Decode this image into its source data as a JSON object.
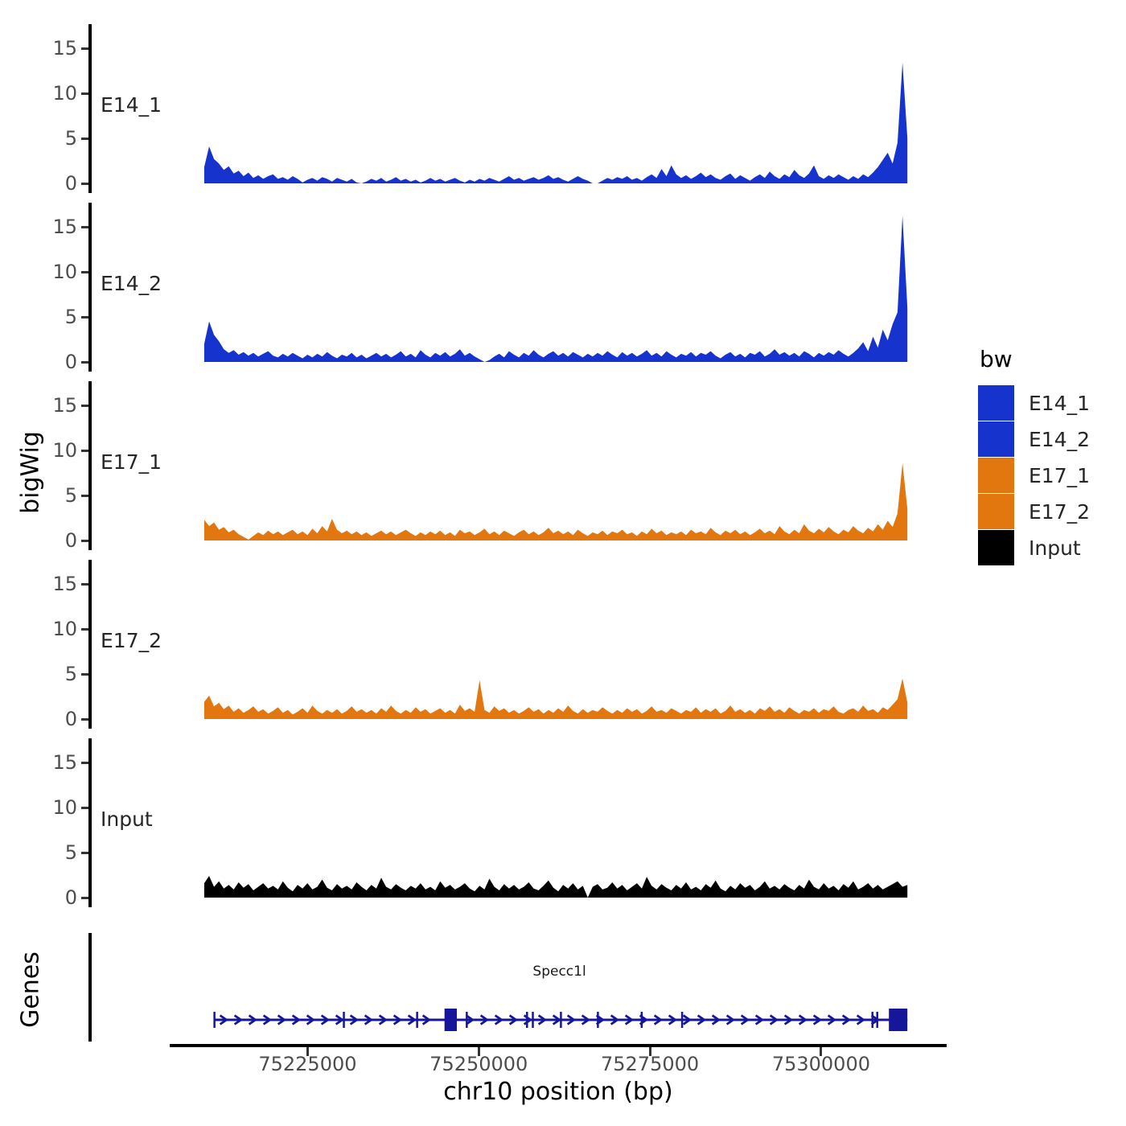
{
  "legend": {
    "title": "bw",
    "entries": [
      {
        "label": "E14_1",
        "color": "#1633CE"
      },
      {
        "label": "E14_2",
        "color": "#1633CE"
      },
      {
        "label": "E17_1",
        "color": "#E2770F"
      },
      {
        "label": "E17_2",
        "color": "#E2770F"
      },
      {
        "label": "Input",
        "color": "#000000"
      }
    ]
  },
  "chart_data": {
    "type": "area",
    "title": "",
    "x_axis": {
      "label": "chr10 position (bp)",
      "chromosome": "chr10",
      "unit": "bp",
      "domain": [
        75193000,
        75318100
      ],
      "ticks": [
        75225000,
        75250000,
        75275000,
        75300000
      ]
    },
    "y_axis": {
      "label": "bigWig",
      "ticks": [
        0,
        5,
        10,
        15
      ],
      "max": 17.7
    },
    "data_range": {
      "start": 75209900,
      "end": 75312600
    },
    "tracks": [
      {
        "name": "E14_1",
        "color": "#1633CE",
        "values": [
          1.8,
          4.1,
          2.7,
          2.2,
          1.5,
          1.9,
          1.1,
          1.4,
          0.8,
          1.2,
          0.6,
          0.9,
          0.5,
          0.8,
          1.0,
          0.5,
          0.7,
          0.4,
          0.8,
          0.5,
          0.1,
          0.4,
          0.6,
          0.3,
          0.7,
          0.5,
          0.2,
          0.6,
          0.4,
          0.2,
          0.5,
          0.1,
          0.0,
          0.2,
          0.5,
          0.3,
          0.6,
          0.2,
          0.4,
          0.7,
          0.3,
          0.5,
          0.2,
          0.4,
          0.1,
          0.3,
          0.6,
          0.3,
          0.5,
          0.2,
          0.4,
          0.6,
          0.3,
          0.1,
          0.4,
          0.2,
          0.5,
          0.3,
          0.6,
          0.4,
          0.2,
          0.5,
          0.8,
          0.4,
          0.6,
          0.3,
          0.5,
          0.7,
          0.4,
          0.6,
          0.9,
          0.5,
          0.7,
          0.4,
          0.2,
          0.5,
          0.8,
          0.5,
          0.3,
          0.0,
          0.0,
          0.3,
          0.6,
          0.4,
          0.7,
          0.5,
          0.8,
          0.4,
          0.6,
          0.3,
          0.7,
          1.0,
          0.6,
          1.6,
          0.8,
          2.0,
          1.0,
          0.6,
          0.9,
          0.5,
          0.8,
          1.2,
          0.7,
          1.0,
          0.6,
          0.4,
          0.8,
          1.1,
          0.5,
          0.9,
          0.6,
          0.3,
          0.7,
          1.0,
          0.6,
          1.3,
          0.8,
          0.5,
          1.0,
          0.7,
          1.5,
          0.9,
          0.6,
          1.1,
          2.0,
          0.8,
          0.5,
          0.9,
          0.6,
          1.0,
          0.7,
          0.4,
          0.8,
          0.5,
          1.0,
          0.7,
          1.2,
          1.8,
          2.6,
          3.4,
          2.2,
          4.5,
          13.4,
          5.0
        ]
      },
      {
        "name": "E14_2",
        "color": "#1633CE",
        "values": [
          2.0,
          4.5,
          3.0,
          2.3,
          1.4,
          1.0,
          1.3,
          0.8,
          1.1,
          0.7,
          1.0,
          0.6,
          0.9,
          1.2,
          0.7,
          0.5,
          0.9,
          0.6,
          1.0,
          0.7,
          0.4,
          0.8,
          0.5,
          0.9,
          0.6,
          1.1,
          0.7,
          0.4,
          0.8,
          0.6,
          1.0,
          0.5,
          0.8,
          0.4,
          0.7,
          1.0,
          0.6,
          0.9,
          0.5,
          0.8,
          1.2,
          0.6,
          0.9,
          0.5,
          1.3,
          0.8,
          0.5,
          1.0,
          0.7,
          1.1,
          0.6,
          0.9,
          1.4,
          0.7,
          1.0,
          0.6,
          0.3,
          0.0,
          0.2,
          0.6,
          0.9,
          0.5,
          1.2,
          0.8,
          0.5,
          1.0,
          0.7,
          1.3,
          0.8,
          0.5,
          0.9,
          1.2,
          0.7,
          1.0,
          0.6,
          1.1,
          0.8,
          0.5,
          0.9,
          0.6,
          1.0,
          0.7,
          1.2,
          0.8,
          0.5,
          1.1,
          0.7,
          1.0,
          0.6,
          0.9,
          1.3,
          0.7,
          1.0,
          0.6,
          1.2,
          0.8,
          0.5,
          0.9,
          0.7,
          1.1,
          0.6,
          1.0,
          0.8,
          1.2,
          0.7,
          0.4,
          0.8,
          1.1,
          0.6,
          0.9,
          0.5,
          1.0,
          0.8,
          1.2,
          0.6,
          0.9,
          1.4,
          0.8,
          1.1,
          0.7,
          1.0,
          0.6,
          1.2,
          0.9,
          0.5,
          1.0,
          0.7,
          1.1,
          0.8,
          1.3,
          0.9,
          0.6,
          1.0,
          1.5,
          2.2,
          1.2,
          2.8,
          1.6,
          3.6,
          2.4,
          4.2,
          5.5,
          16.2,
          6.0
        ]
      },
      {
        "name": "E17_1",
        "color": "#E2770F",
        "values": [
          2.3,
          1.6,
          2.0,
          1.2,
          1.5,
          0.9,
          1.2,
          0.7,
          0.4,
          0.1,
          0.5,
          0.9,
          0.6,
          1.1,
          0.7,
          1.0,
          0.6,
          0.9,
          1.2,
          0.7,
          1.0,
          0.6,
          1.3,
          0.8,
          1.6,
          1.0,
          2.4,
          1.2,
          0.8,
          1.1,
          0.7,
          1.0,
          0.6,
          0.9,
          0.5,
          0.8,
          1.1,
          0.7,
          1.0,
          0.6,
          0.9,
          1.2,
          0.8,
          0.5,
          0.9,
          0.6,
          1.0,
          0.7,
          1.1,
          0.6,
          0.9,
          0.5,
          1.2,
          0.8,
          1.0,
          0.6,
          0.9,
          1.3,
          0.7,
          1.0,
          0.6,
          1.1,
          0.8,
          0.5,
          0.9,
          1.2,
          0.7,
          1.0,
          0.6,
          0.9,
          1.4,
          0.8,
          1.1,
          0.7,
          1.0,
          0.6,
          1.2,
          0.8,
          0.5,
          0.9,
          0.7,
          1.1,
          0.6,
          1.0,
          0.8,
          1.2,
          0.7,
          0.9,
          0.5,
          1.0,
          0.7,
          1.3,
          0.8,
          1.1,
          0.6,
          0.9,
          0.7,
          1.0,
          0.6,
          1.2,
          0.8,
          1.0,
          0.7,
          1.4,
          0.9,
          0.6,
          1.1,
          0.8,
          1.2,
          0.7,
          1.0,
          0.6,
          0.9,
          1.3,
          0.8,
          1.1,
          0.7,
          1.6,
          1.0,
          0.7,
          1.2,
          0.8,
          1.8,
          1.1,
          0.8,
          1.3,
          0.9,
          1.5,
          1.0,
          0.7,
          1.2,
          0.9,
          1.6,
          1.1,
          0.8,
          1.4,
          1.0,
          1.8,
          1.2,
          2.2,
          1.5,
          3.0,
          8.6,
          3.5
        ]
      },
      {
        "name": "E17_2",
        "color": "#E2770F",
        "values": [
          1.9,
          2.6,
          1.4,
          1.8,
          1.1,
          1.5,
          0.8,
          1.2,
          0.7,
          1.0,
          1.4,
          0.8,
          1.1,
          0.6,
          0.9,
          1.3,
          0.7,
          1.0,
          0.5,
          0.8,
          1.2,
          0.7,
          1.5,
          0.9,
          0.6,
          1.0,
          0.7,
          1.1,
          0.6,
          0.9,
          1.4,
          0.8,
          1.1,
          0.7,
          1.0,
          0.6,
          1.2,
          0.8,
          1.5,
          0.9,
          0.6,
          1.0,
          0.7,
          1.3,
          0.8,
          1.1,
          0.6,
          0.9,
          1.2,
          0.7,
          1.0,
          0.6,
          1.6,
          0.9,
          1.2,
          0.8,
          4.3,
          1.0,
          0.7,
          1.4,
          0.9,
          1.2,
          0.7,
          1.0,
          0.6,
          0.9,
          1.3,
          0.8,
          1.1,
          0.6,
          1.0,
          0.7,
          1.2,
          0.8,
          1.5,
          0.9,
          0.6,
          1.1,
          0.7,
          1.0,
          0.8,
          1.3,
          0.9,
          0.6,
          1.0,
          0.7,
          1.2,
          0.8,
          1.1,
          0.6,
          0.9,
          1.4,
          0.8,
          1.0,
          0.7,
          1.2,
          0.9,
          0.6,
          1.0,
          0.8,
          1.3,
          0.7,
          1.1,
          0.8,
          1.2,
          0.6,
          0.9,
          1.5,
          0.8,
          1.1,
          0.7,
          1.0,
          0.6,
          1.2,
          0.9,
          1.4,
          0.8,
          1.1,
          0.7,
          1.3,
          0.9,
          0.6,
          1.0,
          0.8,
          1.2,
          0.7,
          1.1,
          0.9,
          1.4,
          0.8,
          0.6,
          1.0,
          1.2,
          0.8,
          1.5,
          0.9,
          1.1,
          0.7,
          1.3,
          1.0,
          1.6,
          2.2,
          4.5,
          1.8
        ]
      },
      {
        "name": "Input",
        "color": "#000000",
        "values": [
          1.6,
          2.4,
          1.2,
          1.8,
          1.0,
          1.4,
          0.9,
          1.7,
          1.1,
          1.5,
          0.8,
          1.2,
          1.6,
          1.0,
          1.3,
          0.9,
          1.8,
          1.1,
          0.7,
          1.4,
          1.0,
          1.6,
          0.9,
          1.2,
          2.0,
          1.1,
          0.8,
          1.5,
          1.0,
          1.3,
          0.9,
          1.7,
          1.2,
          0.8,
          1.4,
          1.0,
          2.2,
          1.2,
          0.9,
          1.5,
          1.1,
          0.8,
          1.3,
          1.0,
          1.6,
          0.9,
          1.2,
          0.8,
          1.8,
          1.1,
          1.4,
          0.9,
          1.2,
          1.6,
          1.0,
          0.7,
          1.3,
          0.9,
          2.1,
          1.2,
          0.8,
          1.5,
          1.0,
          1.4,
          0.9,
          1.2,
          1.7,
          1.0,
          0.8,
          1.3,
          1.9,
          1.1,
          0.7,
          1.4,
          1.0,
          1.6,
          0.9,
          1.3,
          0.0,
          1.2,
          1.5,
          0.9,
          1.1,
          1.7,
          1.0,
          1.4,
          0.8,
          1.2,
          1.6,
          1.0,
          2.3,
          1.3,
          0.9,
          1.5,
          1.1,
          0.8,
          1.4,
          1.0,
          1.7,
          0.9,
          1.2,
          0.8,
          1.5,
          1.1,
          1.9,
          1.0,
          0.7,
          1.3,
          0.9,
          1.6,
          1.1,
          1.4,
          0.8,
          1.2,
          1.8,
          1.0,
          1.3,
          0.9,
          1.5,
          1.1,
          0.8,
          1.4,
          1.0,
          2.0,
          1.2,
          0.9,
          1.6,
          1.0,
          1.3,
          0.8,
          1.5,
          1.1,
          1.8,
          0.9,
          1.2,
          1.6,
          1.0,
          1.4,
          0.9,
          1.2,
          1.5,
          1.8,
          1.2,
          1.4
        ]
      }
    ],
    "gene_track": {
      "label": "Genes",
      "genes": [
        {
          "name": "Specc1l",
          "strand": "+",
          "start": 75211400,
          "end": 75312600,
          "color": "#16169B",
          "exon_ticks": [
            75211400,
            75230300,
            75241000,
            75248250,
            75257050,
            75257900,
            75262000,
            75267400,
            75273800,
            75279700,
            75307500,
            75308200
          ],
          "exon_boxes": [
            [
              75245000,
              75246800
            ],
            [
              75309900,
              75312600
            ]
          ]
        }
      ]
    }
  }
}
